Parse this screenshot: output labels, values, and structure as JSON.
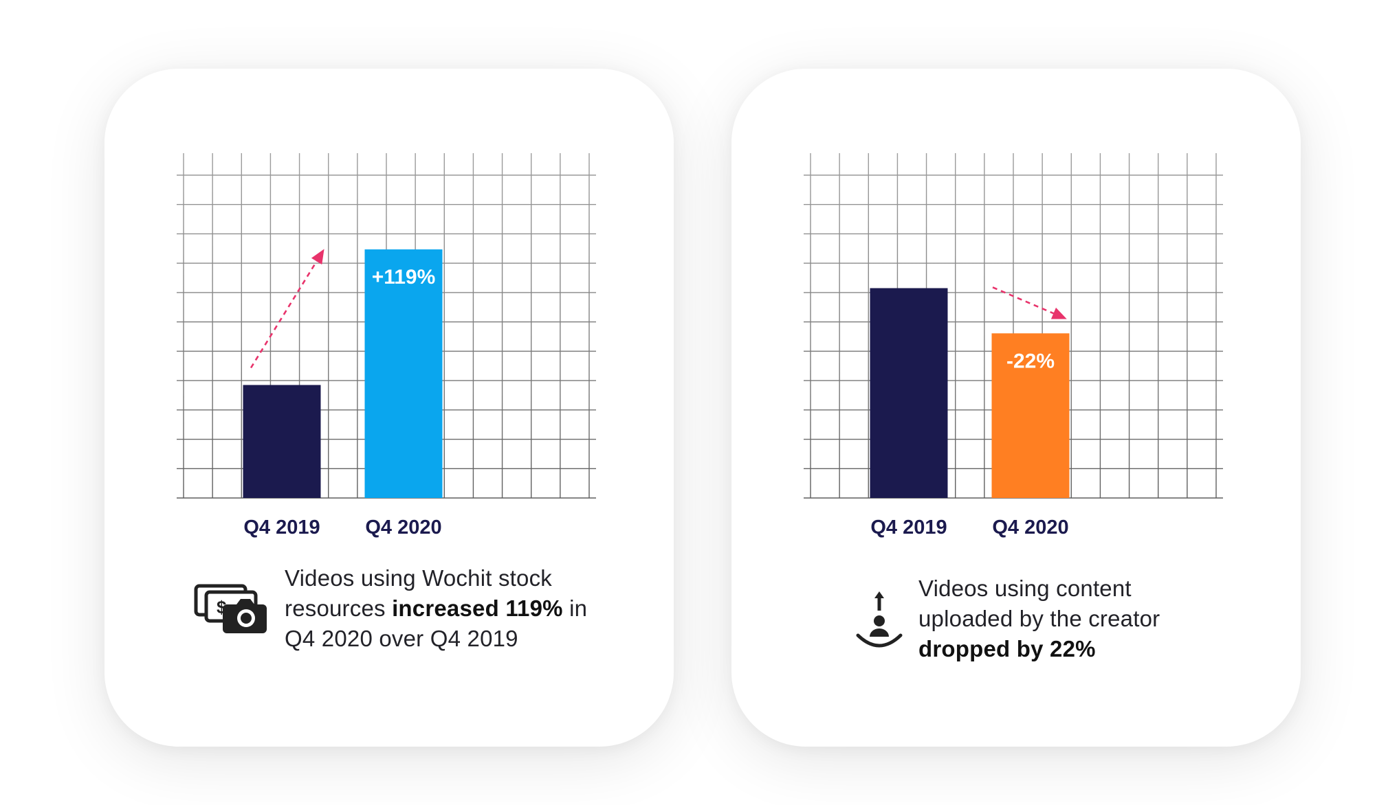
{
  "chart_data": [
    {
      "type": "bar",
      "categories": [
        "Q4 2019",
        "Q4 2020"
      ],
      "values": [
        35,
        77
      ],
      "ylim": [
        0,
        100
      ],
      "grid": true,
      "colors": [
        "#1b1a4e",
        "#0aa6ee"
      ],
      "annotation": {
        "label": "+119%",
        "bar_index": 1,
        "direction": "up",
        "arrow_color": "#e8336b"
      },
      "caption": {
        "icon": "money-camera-icon",
        "before": "Videos using Wochit stock resources ",
        "bold": "increased 119%",
        "after": " in Q4 2020 over Q4 2019"
      }
    },
    {
      "type": "bar",
      "categories": [
        "Q4 2019",
        "Q4 2020"
      ],
      "values": [
        65,
        51
      ],
      "ylim": [
        0,
        100
      ],
      "grid": true,
      "colors": [
        "#1b1a4e",
        "#ff7f22"
      ],
      "annotation": {
        "label": "-22%",
        "bar_index": 1,
        "direction": "down",
        "arrow_color": "#e8336b"
      },
      "caption": {
        "icon": "upload-user-icon",
        "before": "Videos using content uploaded by the creator ",
        "bold": "dropped by 22%",
        "after": ""
      }
    }
  ],
  "style": {
    "axis_label_color": "#1b1a4e",
    "bar_label_color": "#ffffff",
    "grid_color": "#c9c9c9"
  }
}
